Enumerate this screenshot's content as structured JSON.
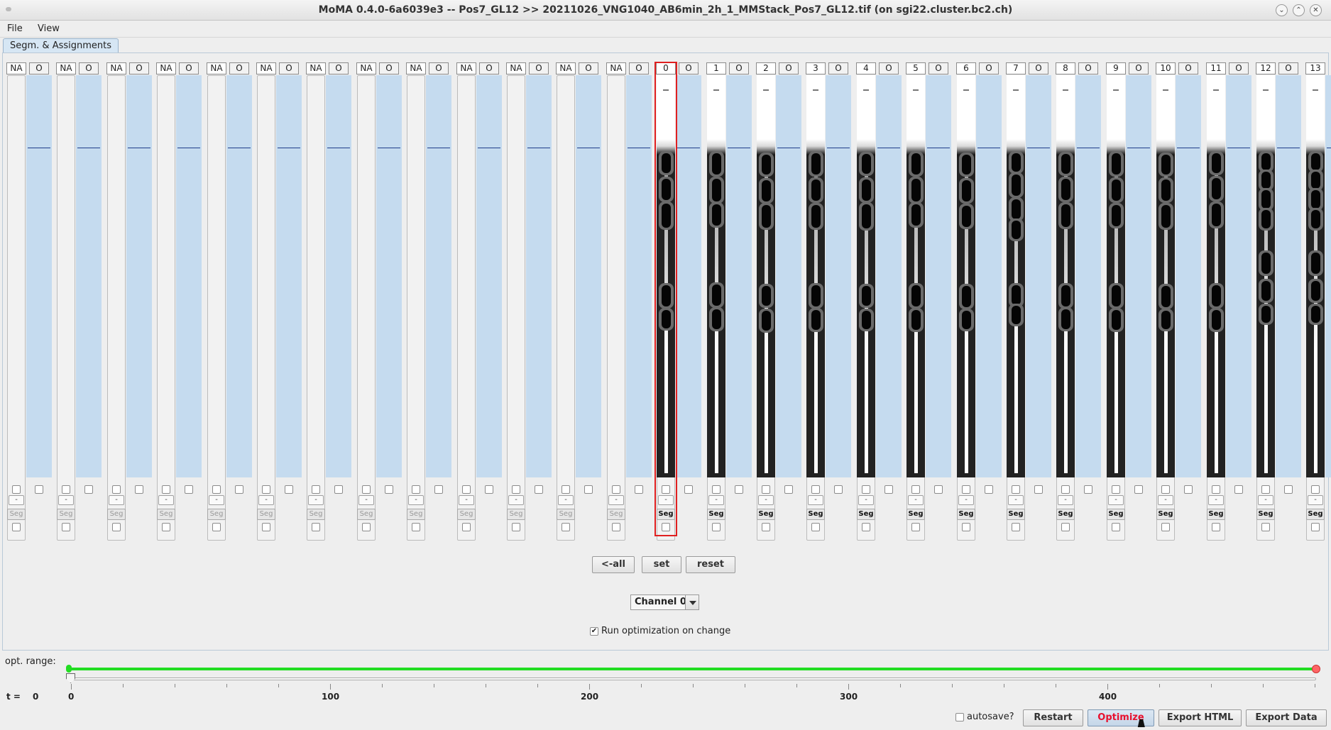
{
  "window": {
    "title": "MoMA 0.4.0-6a6039e3 -- Pos7_GL12 >> 20211026_VNG1040_AB6min_2h_1_MMStack_Pos7_GL12.tif (on sgi22.cluster.bc2.ch)",
    "minimize_icon": "chevron-down-icon",
    "maximize_icon": "chevron-up-icon",
    "close_icon": "close-icon"
  },
  "menu": {
    "file": "File",
    "view": "View"
  },
  "tab": {
    "label": "Segm. & Assignments"
  },
  "gl_labels": [
    "NA",
    "NA",
    "NA",
    "NA",
    "NA",
    "NA",
    "NA",
    "NA",
    "NA",
    "NA",
    "NA",
    "NA",
    "NA",
    "0",
    "1",
    "2",
    "3",
    "4",
    "5",
    "6",
    "7",
    "8",
    "9",
    "10",
    "11",
    "12",
    "13"
  ],
  "gap_label": "O",
  "minus_label": "-",
  "seg_label": "Seg",
  "selected_index": 13,
  "controls": {
    "all_button": "<-all",
    "set_button": "set",
    "reset_button": "reset",
    "channel_select": "Channel 0",
    "run_opt_label": "Run optimization on change",
    "run_opt_checked": true
  },
  "opt_range": {
    "label": "opt. range:",
    "slider_color": "#22dd22",
    "end_handle_color": "#ff6666"
  },
  "time": {
    "t_label": "t =",
    "t_value": "0",
    "ticks": [
      "0",
      "100",
      "200",
      "300",
      "400"
    ]
  },
  "footer": {
    "autosave_label": "autosave?",
    "autosave_checked": false,
    "restart_button": "Restart",
    "optimize_button": "Optimize",
    "optimize_color": "#e8102e",
    "export_html_button": "Export HTML",
    "export_data_button": "Export Data"
  }
}
